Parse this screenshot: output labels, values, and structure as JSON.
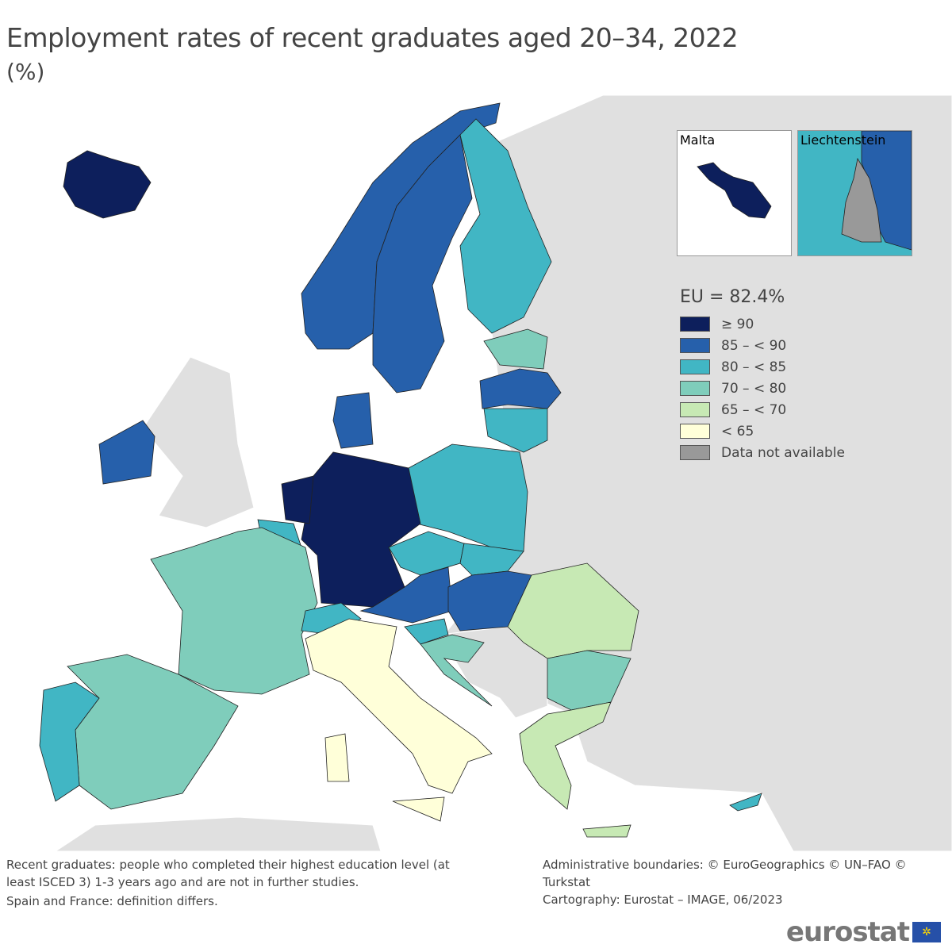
{
  "title": "Employment rates of recent graduates aged 20–34, 2022",
  "unit": "(%)",
  "legend": {
    "eu_value": "EU = 82.4%",
    "classes": [
      {
        "label": "≥ 90",
        "color": "#0d1f5c"
      },
      {
        "label": "85 – < 90",
        "color": "#2660ab"
      },
      {
        "label": "80 – < 85",
        "color": "#41b6c4"
      },
      {
        "label": "70 – < 80",
        "color": "#7fcdbb"
      },
      {
        "label": "65 – < 70",
        "color": "#c7e9b4"
      },
      {
        "label": "< 65",
        "color": "#ffffd9"
      },
      {
        "label": "Data not available",
        "color": "#999999"
      }
    ]
  },
  "countries": {
    "Iceland": 0,
    "Malta": 0,
    "Germany": 0,
    "Netherlands": 0,
    "Norway": 1,
    "Sweden": 1,
    "Latvia": 1,
    "Ireland": 1,
    "Denmark": 1,
    "Austria": 1,
    "Hungary": 1,
    "Finland": 2,
    "Lithuania": 2,
    "Poland": 2,
    "Belgium": 2,
    "Portugal": 2,
    "Czechia": 2,
    "Slovakia": 2,
    "Slovenia": 2,
    "Switzerland": 2,
    "Cyprus": 2,
    "Estonia": 3,
    "France": 3,
    "Spain": 3,
    "Croatia": 3,
    "Bulgaria": 3,
    "Romania": 4,
    "Greece": 4,
    "Italy": 5,
    "Liechtenstein": 6
  },
  "insets": {
    "malta": "Malta",
    "liechtenstein": "Liechtenstein"
  },
  "notes": {
    "left": [
      "Recent graduates: people who completed their highest education level (at",
      "least ISCED 3) 1-3 years ago and are not in further studies.",
      "Spain and France: definition differs."
    ],
    "right": [
      "Administrative boundaries: © EuroGeographics © UN–FAO © Turkstat",
      "Cartography: Eurostat – IMAGE, 06/2023"
    ]
  },
  "logo": "eurostat",
  "colors": {
    "land_other": "#e0e0e0",
    "sea": "#ffffff"
  }
}
